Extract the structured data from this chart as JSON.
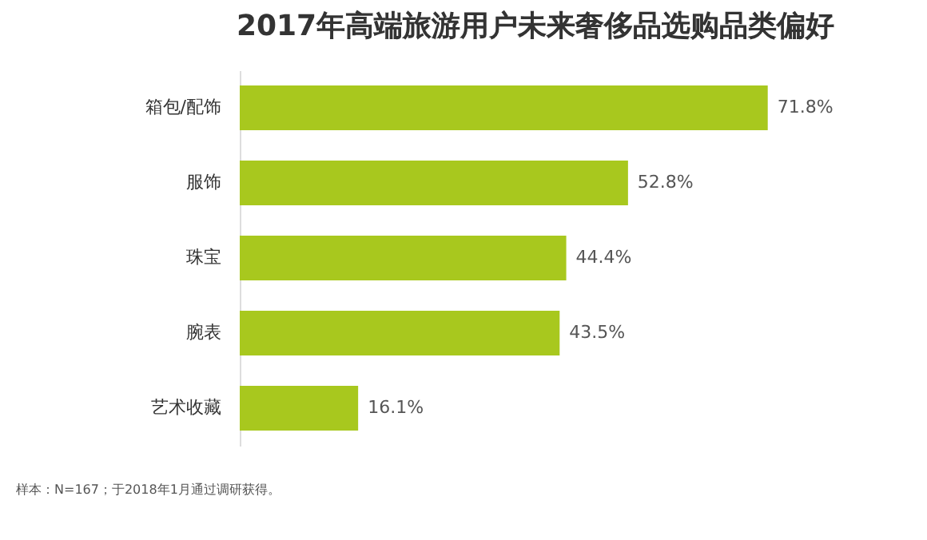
{
  "chart_data": {
    "type": "bar",
    "orientation": "horizontal",
    "title": "2017年高端旅游用户未来奢侈品选购品类偏好",
    "categories": [
      "箱包/配饰",
      "服饰",
      "珠宝",
      "腕表",
      "艺术收藏"
    ],
    "values": [
      71.8,
      52.8,
      44.4,
      43.5,
      16.1
    ],
    "value_labels": [
      "71.8%",
      "52.8%",
      "44.4%",
      "43.5%",
      "16.1%"
    ],
    "color": "#a8c81e",
    "annotations": [
      "样本：N=167；于2018年1月通过调研获得。"
    ]
  }
}
